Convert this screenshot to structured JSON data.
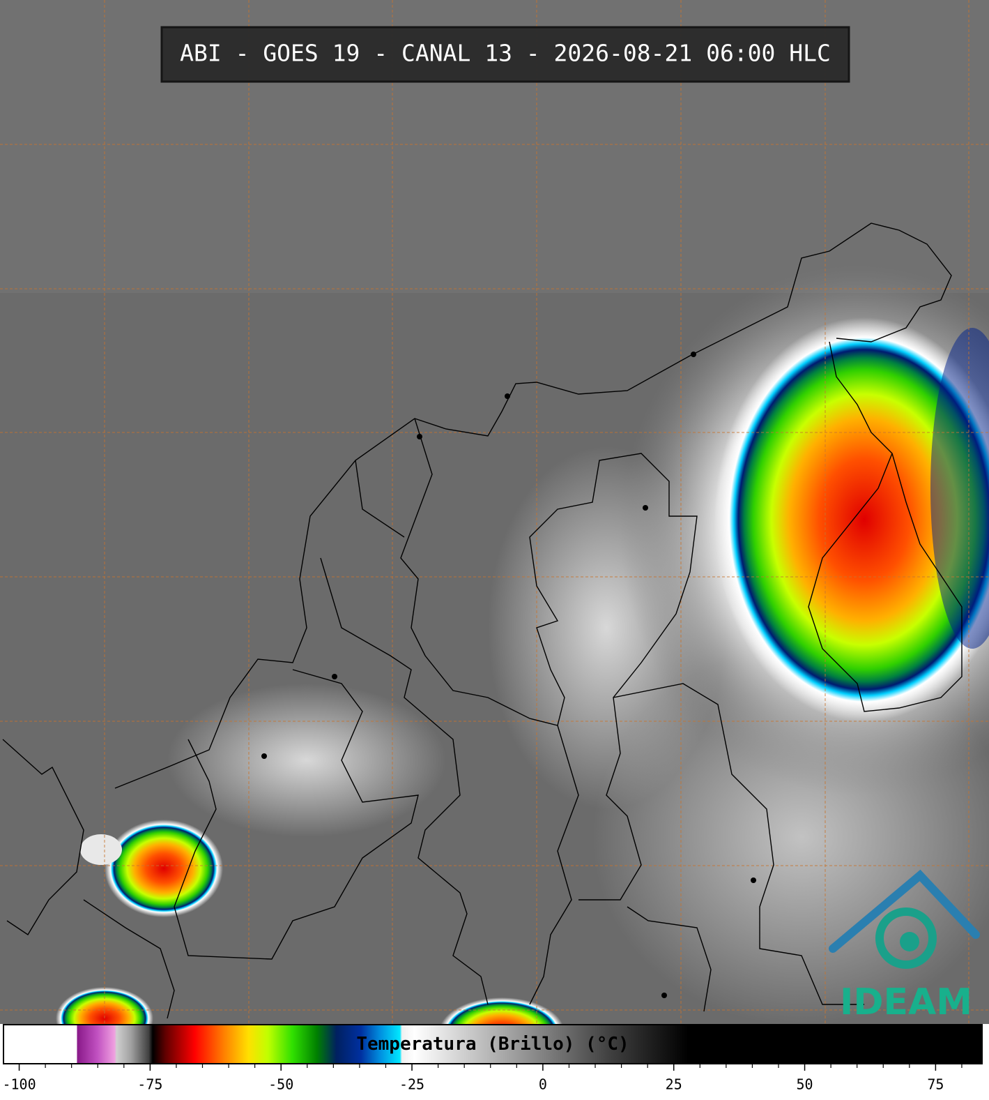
{
  "title": "ABI - GOES 19 - CANAL 13 - 2026-08-21 06:00 HLC",
  "logo": "IDEAM",
  "colorbar": {
    "label": "Temperatura (Brillo) (°C)",
    "lim": [
      -103,
      84
    ],
    "ticks": [
      -100,
      -75,
      -50,
      -25,
      0,
      25,
      50,
      75
    ],
    "minor_ticks": [
      -95,
      -90,
      -85,
      -80,
      -70,
      -65,
      -60,
      -55,
      -45,
      -40,
      -35,
      -30,
      -20,
      -15,
      -10,
      -5,
      5,
      10,
      15,
      20,
      30,
      35,
      40,
      45,
      55,
      60,
      65,
      70,
      80
    ]
  }
}
